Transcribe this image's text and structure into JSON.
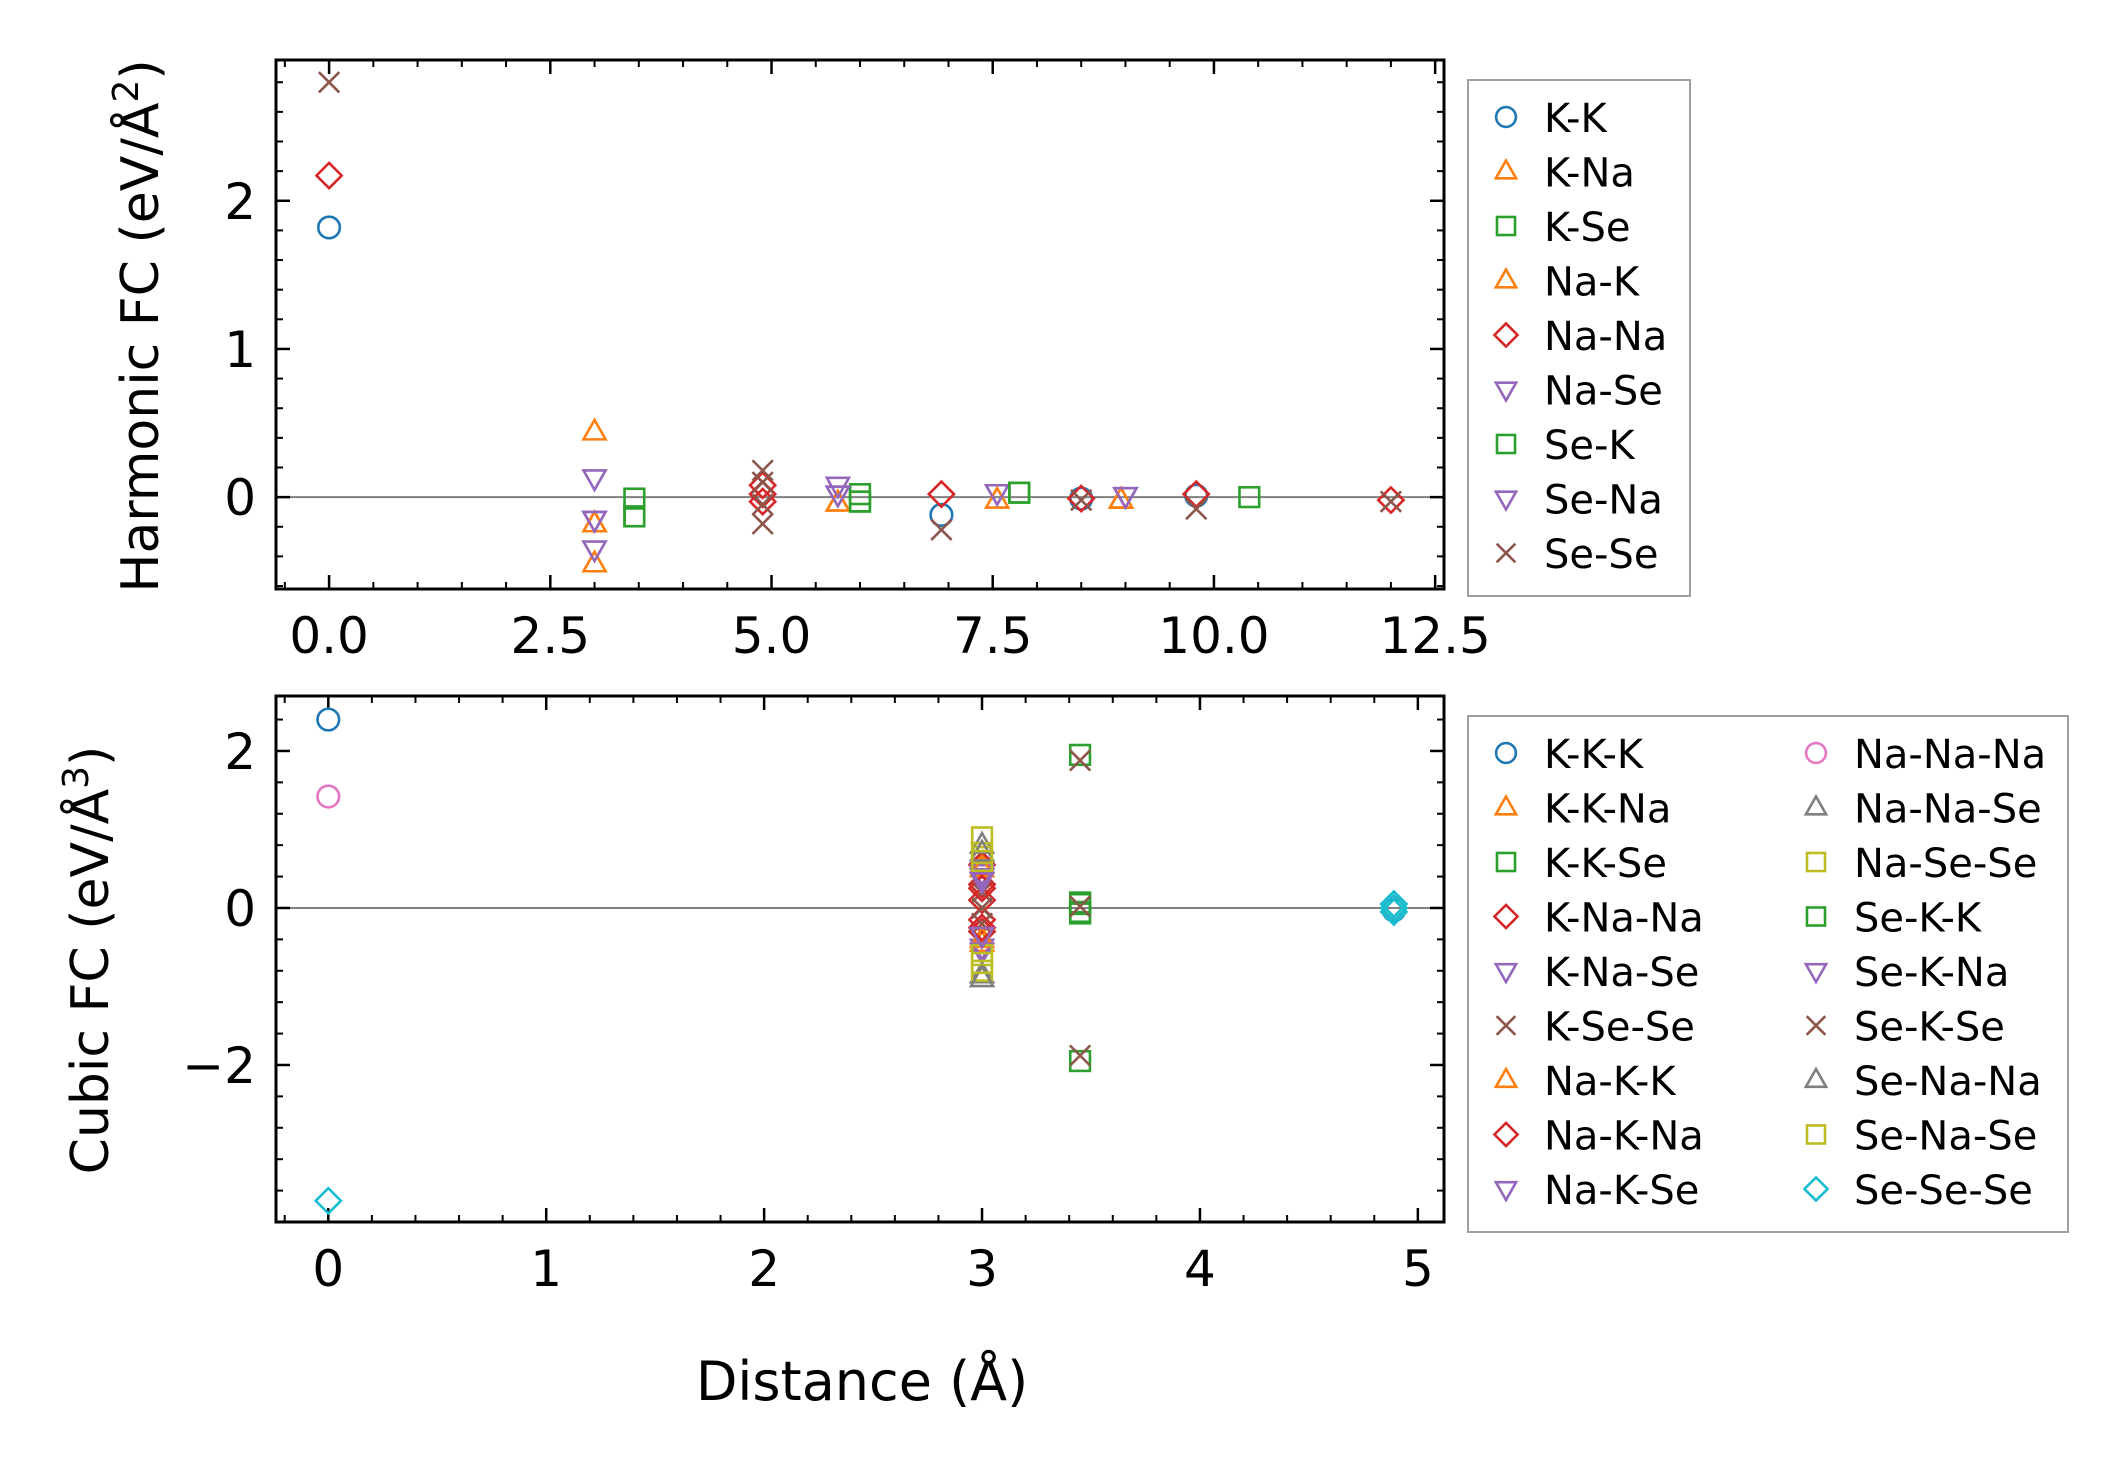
{
  "chart_data": [
    {
      "type": "scatter",
      "id": "harmonic",
      "title": "",
      "xlabel": "",
      "ylabel": "Harmonic FC (eV/Å²)",
      "ylabel_main": "Harmonic FC (eV/Å",
      "ylabel_sup": "2",
      "ylabel_close": ")",
      "xlim": [
        -0.6,
        12.6
      ],
      "ylim": [
        -0.62,
        2.95
      ],
      "xticks": [
        0,
        2.5,
        5,
        7.5,
        10,
        12.5
      ],
      "xtick_labels": [
        "0.0",
        "2.5",
        "5.0",
        "7.5",
        "10.0",
        "12.5"
      ],
      "yticks": [
        0,
        1,
        2
      ],
      "ytick_labels": [
        "0",
        "1",
        "2"
      ],
      "zero_line": true,
      "legend": "outside-right",
      "series": [
        {
          "name": "K-K",
          "marker": "circle",
          "color": "#1f77b4",
          "points": [
            [
              0,
              1.82
            ],
            [
              6.92,
              -0.12
            ],
            [
              8.5,
              -0.01
            ],
            [
              9.8,
              0.01
            ]
          ]
        },
        {
          "name": "K-Na",
          "marker": "triangle-up",
          "color": "#ff7f0e",
          "points": [
            [
              3.0,
              0.44
            ],
            [
              3.0,
              -0.18
            ],
            [
              3.0,
              -0.45
            ],
            [
              5.75,
              -0.04
            ],
            [
              7.55,
              -0.02
            ],
            [
              8.95,
              -0.02
            ]
          ]
        },
        {
          "name": "K-Se",
          "marker": "square",
          "color": "#2ca02c",
          "points": [
            [
              3.45,
              -0.01
            ],
            [
              3.45,
              -0.13
            ],
            [
              6.0,
              0.02
            ],
            [
              6.0,
              -0.03
            ],
            [
              7.8,
              0.03
            ],
            [
              10.4,
              0.0
            ]
          ]
        },
        {
          "name": "Na-K",
          "marker": "triangle-up",
          "color": "#ff7f0e",
          "points": [
            [
              3.0,
              -0.18
            ],
            [
              5.75,
              -0.04
            ],
            [
              8.95,
              -0.02
            ]
          ]
        },
        {
          "name": "Na-Na",
          "marker": "diamond",
          "color": "#d62728",
          "points": [
            [
              0,
              2.17
            ],
            [
              4.9,
              0.08
            ],
            [
              4.9,
              0.02
            ],
            [
              4.9,
              -0.03
            ],
            [
              6.92,
              0.02
            ],
            [
              8.5,
              -0.01
            ],
            [
              9.8,
              0.02
            ],
            [
              12.0,
              -0.02
            ]
          ]
        },
        {
          "name": "Na-Se",
          "marker": "triangle-down",
          "color": "#9467bd",
          "points": [
            [
              3.0,
              0.13
            ],
            [
              3.0,
              -0.15
            ],
            [
              3.0,
              -0.35
            ],
            [
              5.75,
              0.08
            ],
            [
              5.75,
              0.02
            ],
            [
              7.55,
              0.03
            ],
            [
              9.0,
              0.01
            ]
          ]
        },
        {
          "name": "Se-K",
          "marker": "square",
          "color": "#2ca02c",
          "points": [
            [
              3.45,
              -0.13
            ],
            [
              6.0,
              -0.03
            ],
            [
              7.8,
              0.03
            ]
          ]
        },
        {
          "name": "Se-Na",
          "marker": "triangle-down",
          "color": "#9467bd",
          "points": [
            [
              3.0,
              -0.15
            ],
            [
              5.75,
              0.02
            ],
            [
              9.0,
              0.01
            ]
          ]
        },
        {
          "name": "Se-Se",
          "marker": "x",
          "color": "#8c564b",
          "points": [
            [
              0,
              2.8
            ],
            [
              4.9,
              0.18
            ],
            [
              4.9,
              0.1
            ],
            [
              4.9,
              -0.05
            ],
            [
              4.9,
              -0.18
            ],
            [
              6.92,
              -0.22
            ],
            [
              8.5,
              -0.02
            ],
            [
              9.8,
              -0.08
            ],
            [
              12.0,
              -0.03
            ]
          ]
        }
      ]
    },
    {
      "type": "scatter",
      "id": "cubic",
      "title": "",
      "xlabel": "Distance (Å)",
      "ylabel": "Cubic FC (eV/Å³)",
      "ylabel_main": "Cubic FC (eV/Å",
      "ylabel_sup": "3",
      "ylabel_close": ")",
      "xlim": [
        -0.24,
        5.12
      ],
      "ylim": [
        -4.0,
        2.7
      ],
      "xticks": [
        0,
        1,
        2,
        3,
        4,
        5
      ],
      "xtick_labels": [
        "0",
        "1",
        "2",
        "3",
        "4",
        "5"
      ],
      "yticks": [
        2,
        0,
        -2
      ],
      "ytick_labels": [
        "2",
        "0",
        "−2"
      ],
      "zero_line": true,
      "legend": "outside-right",
      "series": [
        {
          "name": "K-K-K",
          "marker": "circle",
          "color": "#1f77b4",
          "points": [
            [
              0,
              2.4
            ],
            [
              4.89,
              -0.03
            ]
          ]
        },
        {
          "name": "K-K-Na",
          "marker": "triangle-up",
          "color": "#ff7f0e",
          "points": [
            [
              3.0,
              0.55
            ],
            [
              3.0,
              -0.45
            ]
          ]
        },
        {
          "name": "K-K-Se",
          "marker": "square",
          "color": "#2ca02c",
          "points": [
            [
              3.45,
              1.95
            ],
            [
              3.45,
              0.07
            ],
            [
              3.45,
              -0.07
            ],
            [
              3.45,
              -1.95
            ]
          ]
        },
        {
          "name": "K-Na-Na",
          "marker": "diamond",
          "color": "#d62728",
          "points": [
            [
              3.0,
              0.55
            ],
            [
              3.0,
              0.3
            ],
            [
              3.0,
              0.1
            ],
            [
              3.0,
              -0.15
            ],
            [
              3.0,
              -0.3
            ]
          ]
        },
        {
          "name": "K-Na-Se",
          "marker": "triangle-down",
          "color": "#9467bd",
          "points": [
            [
              3.0,
              0.45
            ],
            [
              3.0,
              -0.5
            ]
          ]
        },
        {
          "name": "K-Se-Se",
          "marker": "x",
          "color": "#8c564b",
          "points": [
            [
              3.45,
              1.88
            ],
            [
              3.45,
              -1.88
            ],
            [
              3.0,
              0.2
            ],
            [
              3.0,
              -0.2
            ]
          ]
        },
        {
          "name": "Na-K-K",
          "marker": "triangle-up",
          "color": "#ff7f0e",
          "points": [
            [
              3.0,
              0.5
            ],
            [
              3.0,
              -0.4
            ]
          ]
        },
        {
          "name": "Na-K-Na",
          "marker": "diamond",
          "color": "#d62728",
          "points": [
            [
              3.0,
              0.25
            ],
            [
              3.0,
              -0.25
            ]
          ]
        },
        {
          "name": "Na-K-Se",
          "marker": "triangle-down",
          "color": "#9467bd",
          "points": [
            [
              3.0,
              0.4
            ],
            [
              3.0,
              -0.55
            ]
          ]
        },
        {
          "name": "Na-Na-Na",
          "marker": "circle",
          "color": "#e377c2",
          "points": [
            [
              0,
              1.42
            ],
            [
              4.89,
              0.0
            ]
          ]
        },
        {
          "name": "Na-Na-Se",
          "marker": "triangle-up",
          "color": "#7f7f7f",
          "points": [
            [
              3.0,
              0.8
            ],
            [
              3.0,
              -0.85
            ]
          ]
        },
        {
          "name": "Na-Se-Se",
          "marker": "square",
          "color": "#bcbd22",
          "points": [
            [
              3.0,
              0.9
            ],
            [
              3.0,
              0.7
            ],
            [
              3.0,
              -0.6
            ],
            [
              3.0,
              -0.8
            ]
          ]
        },
        {
          "name": "Se-K-K",
          "marker": "square",
          "color": "#2ca02c",
          "points": [
            [
              3.45,
              0.05
            ],
            [
              3.45,
              -0.05
            ]
          ]
        },
        {
          "name": "Se-K-Na",
          "marker": "triangle-down",
          "color": "#9467bd",
          "points": [
            [
              3.0,
              0.35
            ],
            [
              3.0,
              -0.35
            ]
          ]
        },
        {
          "name": "Se-K-Se",
          "marker": "x",
          "color": "#8c564b",
          "points": [
            [
              3.45,
              0.02
            ],
            [
              3.0,
              0.0
            ]
          ]
        },
        {
          "name": "Se-Na-Na",
          "marker": "triangle-up",
          "color": "#7f7f7f",
          "points": [
            [
              3.0,
              0.7
            ],
            [
              3.0,
              -0.9
            ]
          ]
        },
        {
          "name": "Se-Na-Se",
          "marker": "square",
          "color": "#bcbd22",
          "points": [
            [
              3.0,
              0.6
            ],
            [
              3.0,
              -0.7
            ]
          ]
        },
        {
          "name": "Se-Se-Se",
          "marker": "diamond",
          "color": "#17becf",
          "points": [
            [
              0,
              -3.73
            ],
            [
              4.89,
              0.05
            ],
            [
              4.89,
              0.0
            ],
            [
              4.89,
              -0.05
            ]
          ]
        }
      ]
    }
  ]
}
